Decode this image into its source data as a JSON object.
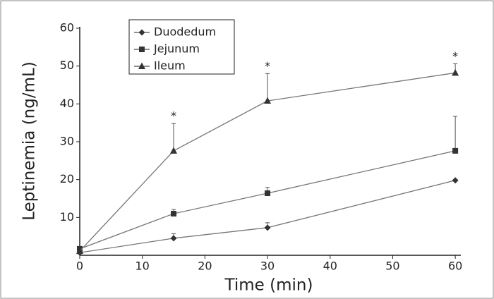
{
  "chart_data": {
    "type": "line",
    "xlabel": "Time (min)",
    "ylabel": "Leptinemia (ng/mL)",
    "x": [
      0,
      15,
      30,
      60
    ],
    "series": [
      {
        "name": "Duodedum",
        "color": "#333333",
        "marker": "diamond",
        "values": [
          0.7,
          4.5,
          7.3,
          19.8
        ],
        "errors": [
          null,
          1.2,
          1.3,
          null
        ]
      },
      {
        "name": "Jejunum",
        "color": "#333333",
        "marker": "square",
        "values": [
          1.7,
          11,
          16.4,
          27.6
        ],
        "errors": [
          null,
          1.1,
          1.5,
          9.1
        ]
      },
      {
        "name": "Ileum",
        "color": "#333333",
        "marker": "triangle",
        "values": [
          1.1,
          27.6,
          40.8,
          48.2
        ],
        "errors": [
          null,
          7.2,
          7.2,
          2.4
        ]
      }
    ],
    "annotations": [
      {
        "text": "*",
        "x": 15
      },
      {
        "text": "*",
        "x": 30
      },
      {
        "text": "*",
        "x": 60
      }
    ],
    "xlim": [
      0,
      61
    ],
    "xticks": [
      0,
      10,
      20,
      30,
      40,
      50,
      60
    ],
    "ylim": [
      0,
      60
    ],
    "yticks": [
      10,
      20,
      30,
      40,
      50,
      60
    ],
    "line_color": "#777777",
    "legend": "upper left"
  }
}
